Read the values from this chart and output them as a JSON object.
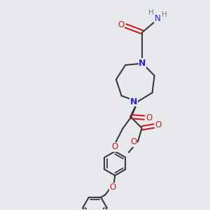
{
  "bg_color": "#e8e9ec",
  "bond_color": "#3a3a3a",
  "N_color": "#2626cc",
  "O_color": "#cc1a1a",
  "H_color": "#5a8a8a",
  "bond_width": 1.5,
  "figsize": [
    3.0,
    3.0
  ],
  "dpi": 100,
  "xlim": [
    0,
    10
  ],
  "ylim": [
    0,
    10
  ]
}
